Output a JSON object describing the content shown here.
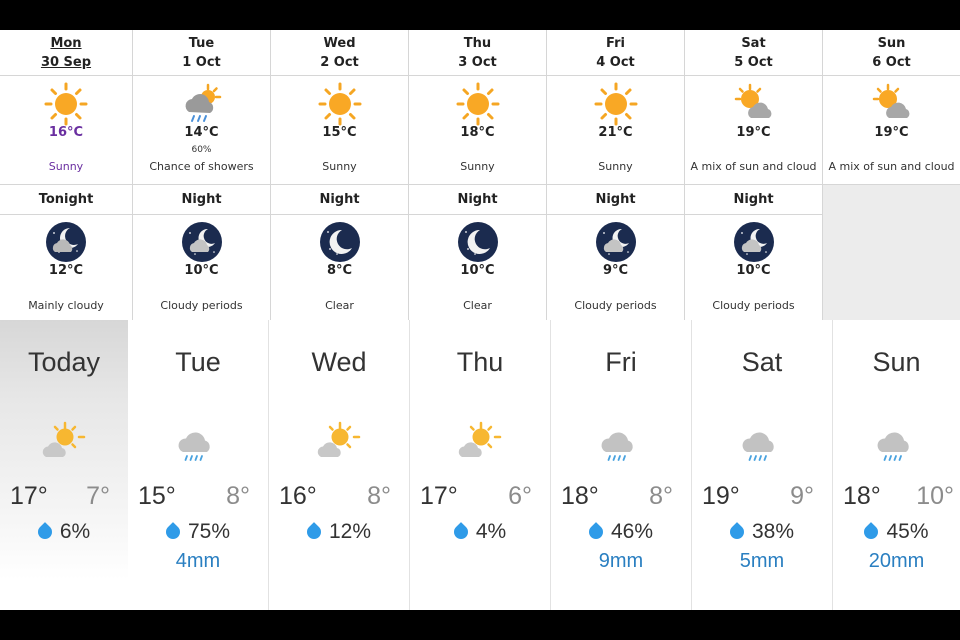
{
  "env_canada": {
    "days": [
      {
        "day": "Mon",
        "date": "30 Sep",
        "icon": "sun-icon",
        "temp": "16°C",
        "pop": "",
        "condition": "Sunny"
      },
      {
        "day": "Tue",
        "date": "1 Oct",
        "icon": "sun-cloud-showers-icon",
        "temp": "14°C",
        "pop": "60%",
        "condition": "Chance of showers"
      },
      {
        "day": "Wed",
        "date": "2 Oct",
        "icon": "sun-icon",
        "temp": "15°C",
        "pop": "",
        "condition": "Sunny"
      },
      {
        "day": "Thu",
        "date": "3 Oct",
        "icon": "sun-icon",
        "temp": "18°C",
        "pop": "",
        "condition": "Sunny"
      },
      {
        "day": "Fri",
        "date": "4 Oct",
        "icon": "sun-icon",
        "temp": "21°C",
        "pop": "",
        "condition": "Sunny"
      },
      {
        "day": "Sat",
        "date": "5 Oct",
        "icon": "sun-cloud-icon",
        "temp": "19°C",
        "pop": "",
        "condition": "A mix of sun and cloud"
      },
      {
        "day": "Sun",
        "date": "6 Oct",
        "icon": "sun-cloud-icon",
        "temp": "19°C",
        "pop": "",
        "condition": "A mix of sun and cloud"
      }
    ],
    "nights": [
      {
        "label": "Tonight",
        "icon": "moon-cloud-icon",
        "temp": "12°C",
        "condition": "Mainly cloudy"
      },
      {
        "label": "Night",
        "icon": "moon-cloud-icon",
        "temp": "10°C",
        "condition": "Cloudy periods"
      },
      {
        "label": "Night",
        "icon": "moon-clear-icon",
        "temp": "8°C",
        "condition": "Clear"
      },
      {
        "label": "Night",
        "icon": "moon-clear-icon",
        "temp": "10°C",
        "condition": "Clear"
      },
      {
        "label": "Night",
        "icon": "moon-cloud-icon",
        "temp": "9°C",
        "condition": "Cloudy periods"
      },
      {
        "label": "Night",
        "icon": "moon-cloud-icon",
        "temp": "10°C",
        "condition": "Cloudy periods"
      }
    ],
    "colors": {
      "today_highlight": "#6a2fa0",
      "grid_line": "#d6d6d6",
      "empty_cell": "#ececec"
    }
  },
  "strip": {
    "days": [
      {
        "day": "Today",
        "icon": "partly-sunny-icon",
        "high": "17°",
        "low": "7°",
        "pop": "6%",
        "rain": ""
      },
      {
        "day": "Tue",
        "icon": "rain-cloud-icon",
        "high": "15°",
        "low": "8°",
        "pop": "75%",
        "rain": "4mm"
      },
      {
        "day": "Wed",
        "icon": "partly-sunny-icon",
        "high": "16°",
        "low": "8°",
        "pop": "12%",
        "rain": ""
      },
      {
        "day": "Thu",
        "icon": "partly-sunny-icon",
        "high": "17°",
        "low": "6°",
        "pop": "4%",
        "rain": ""
      },
      {
        "day": "Fri",
        "icon": "rain-cloud-icon",
        "high": "18°",
        "low": "8°",
        "pop": "46%",
        "rain": "9mm"
      },
      {
        "day": "Sat",
        "icon": "rain-cloud-icon",
        "high": "19°",
        "low": "9°",
        "pop": "38%",
        "rain": "5mm"
      },
      {
        "day": "Sun",
        "icon": "rain-cloud-icon",
        "high": "18°",
        "low": "10°",
        "pop": "45%",
        "rain": "20mm"
      }
    ],
    "colors": {
      "drop": "#2f9be8",
      "rain_text": "#2a7fc1",
      "low_text": "#8c8c8c"
    }
  }
}
